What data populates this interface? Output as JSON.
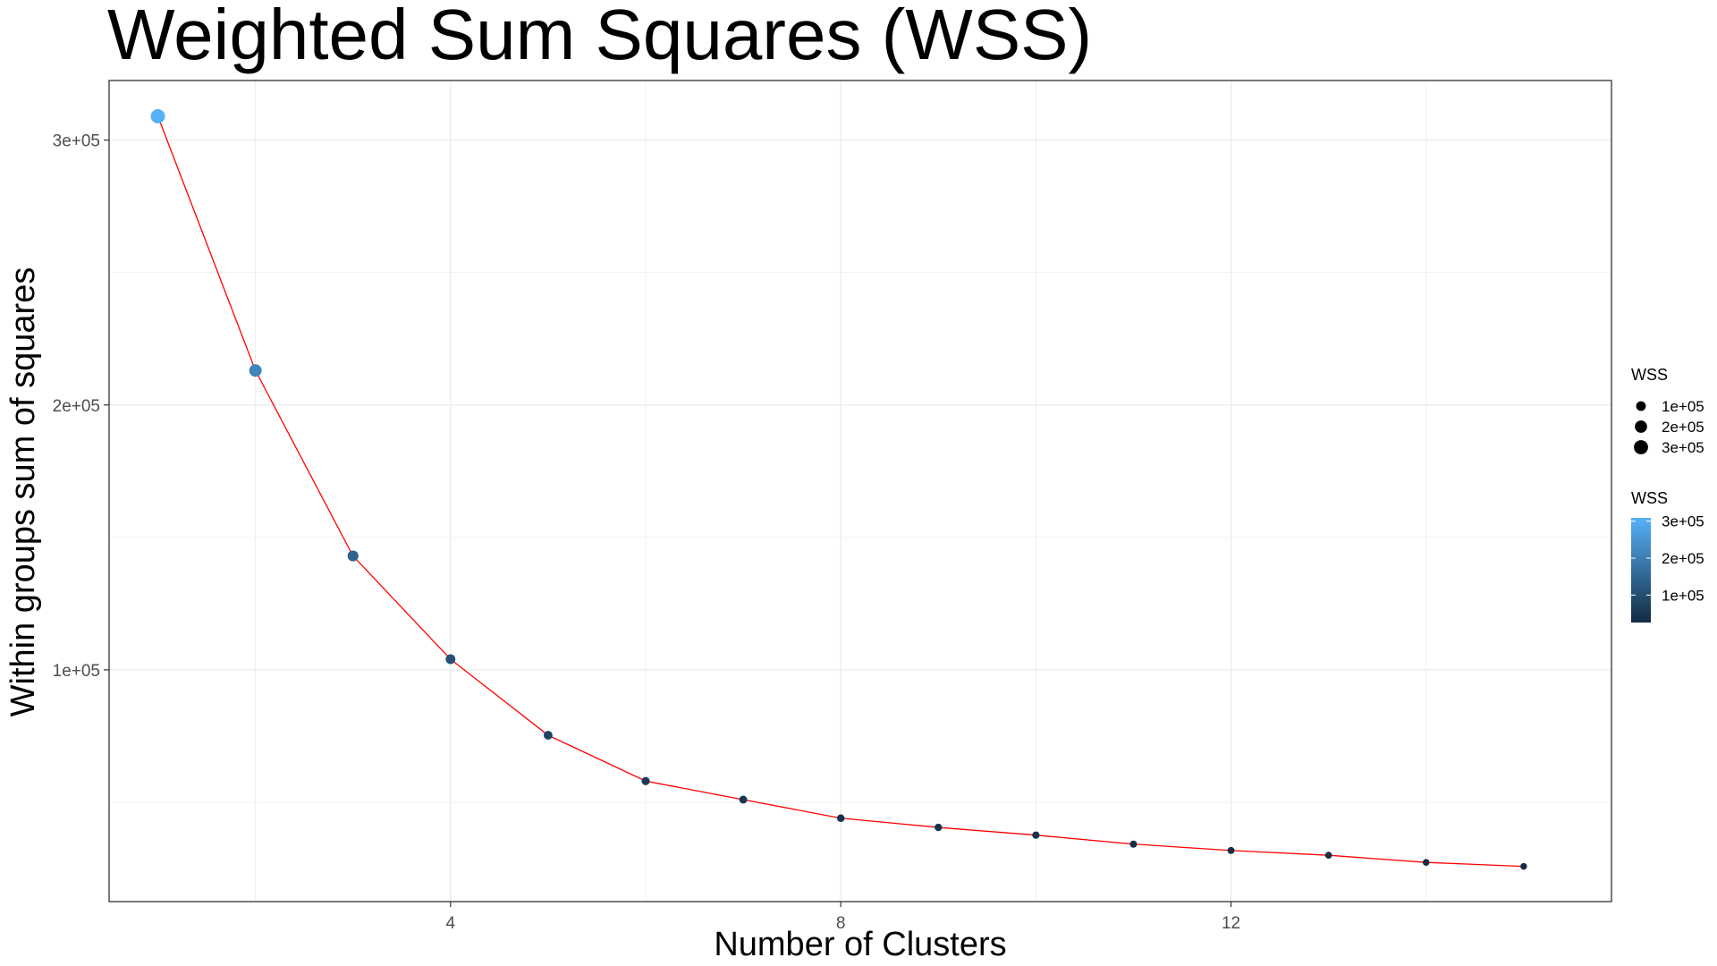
{
  "chart_data": {
    "type": "line",
    "title": "Weighted Sum Squares (WSS)",
    "xlabel": "Number of Clusters",
    "ylabel": "Within groups sum of squares",
    "x": [
      1,
      2,
      3,
      4,
      5,
      6,
      7,
      8,
      9,
      10,
      11,
      12,
      13,
      14,
      15
    ],
    "y": [
      309000,
      213000,
      143000,
      104000,
      75300,
      58000,
      51000,
      44000,
      40500,
      37600,
      34200,
      31800,
      30000,
      27300,
      25800
    ],
    "xlim": [
      0.5,
      15.9
    ],
    "ylim": [
      12500,
      322500
    ],
    "x_ticks": [
      4,
      8,
      12
    ],
    "x_tick_labels": [
      "4",
      "8",
      "12"
    ],
    "y_ticks": [
      100000,
      200000,
      300000
    ],
    "y_tick_labels": [
      "1e+05",
      "2e+05",
      "3e+05"
    ],
    "grid": true,
    "line_color": "#ff0000",
    "point_color_low": "#132b43",
    "point_color_high": "#56b1f7",
    "legend_position": "right",
    "legend": {
      "size": {
        "title": "WSS",
        "labels": [
          "1e+05",
          "2e+05",
          "3e+05"
        ],
        "values": [
          100000,
          200000,
          300000
        ]
      },
      "color": {
        "title": "WSS",
        "labels": [
          "3e+05",
          "2e+05",
          "1e+05"
        ],
        "values": [
          300000,
          200000,
          100000
        ]
      }
    }
  }
}
